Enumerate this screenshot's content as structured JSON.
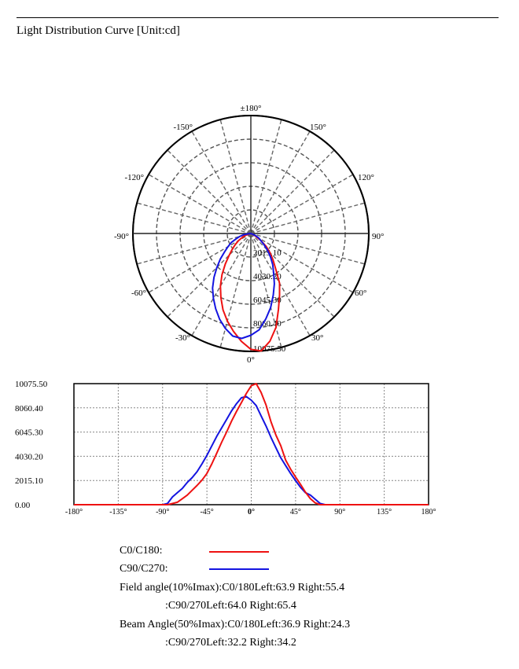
{
  "header": {
    "title": "Light Distribution Curve [Unit:cd]"
  },
  "chart_data": [
    {
      "type": "polar",
      "angle_labels": [
        {
          "angle": 180,
          "text": "±180°"
        },
        {
          "angle": 150,
          "text": "150°"
        },
        {
          "angle": -150,
          "text": "-150°"
        },
        {
          "angle": 120,
          "text": "120°"
        },
        {
          "angle": -120,
          "text": "-120°"
        },
        {
          "angle": 90,
          "text": "90°"
        },
        {
          "angle": -90,
          "text": "-90°"
        },
        {
          "angle": 60,
          "text": "60°"
        },
        {
          "angle": -60,
          "text": "-60°"
        },
        {
          "angle": 30,
          "text": "30°"
        },
        {
          "angle": -30,
          "text": "-30°"
        },
        {
          "angle": 0,
          "text": "0°"
        }
      ],
      "radial_labels": [
        "2015.10",
        "4030.20",
        "6045.30",
        "8060.40",
        "10075.50"
      ],
      "rmax": 10075.5,
      "series": [
        {
          "name": "C0/C180",
          "color": "#ee1111",
          "angles": [
            -90,
            -85,
            -80,
            -75,
            -70,
            -65,
            -60,
            -55,
            -50,
            -45,
            -40,
            -35,
            -30,
            -25,
            -20,
            -15,
            -10,
            -5,
            0,
            5,
            10,
            15,
            20,
            25,
            30,
            35,
            40,
            45,
            50,
            55,
            60,
            65,
            70,
            75,
            80,
            85,
            90
          ],
          "values": [
            0,
            0,
            100,
            200,
            500,
            800,
            1200,
            1600,
            2050,
            2600,
            3400,
            4300,
            5200,
            6050,
            6950,
            7750,
            8500,
            9250,
            9900,
            10075,
            9350,
            8300,
            6900,
            5800,
            4900,
            3700,
            2950,
            2300,
            1700,
            1050,
            500,
            150,
            0,
            0,
            0,
            0,
            0
          ]
        },
        {
          "name": "C90/C270",
          "color": "#1414e0",
          "angles": [
            -90,
            -85,
            -80,
            -75,
            -70,
            -65,
            -60,
            -55,
            -50,
            -45,
            -40,
            -35,
            -30,
            -25,
            -20,
            -15,
            -10,
            -5,
            0,
            5,
            10,
            15,
            20,
            25,
            30,
            35,
            40,
            45,
            50,
            55,
            60,
            65,
            70,
            75,
            80,
            85,
            90
          ],
          "values": [
            0,
            100,
            650,
            1000,
            1350,
            1850,
            2250,
            2750,
            3400,
            4100,
            4900,
            5700,
            6400,
            7100,
            7800,
            8400,
            8900,
            9000,
            8700,
            8250,
            7400,
            6550,
            5600,
            4750,
            3900,
            3250,
            2600,
            2000,
            1450,
            1000,
            800,
            450,
            100,
            0,
            0,
            0,
            0
          ]
        }
      ]
    },
    {
      "type": "line",
      "xlim": [
        -180,
        180
      ],
      "ylim": [
        0,
        10075.5
      ],
      "x_ticks": [
        -180,
        -135,
        -90,
        -45,
        0,
        45,
        90,
        135,
        180
      ],
      "x_tick_labels": [
        "-180°",
        "-135°",
        "-90°",
        "-45°",
        "0°",
        "45°",
        "90°",
        "135°",
        "180°"
      ],
      "y_tick_labels": [
        "10075.50",
        "8060.40",
        "6045.30",
        "4030.20",
        "2015.10",
        "0.00"
      ],
      "grid": true,
      "series": [
        {
          "name": "C0/C180",
          "color": "#ee1111",
          "x": [
            -180,
            -90,
            -85,
            -80,
            -75,
            -70,
            -65,
            -60,
            -55,
            -50,
            -45,
            -40,
            -35,
            -30,
            -25,
            -20,
            -15,
            -10,
            -5,
            0,
            5,
            10,
            15,
            20,
            25,
            30,
            35,
            40,
            45,
            50,
            55,
            60,
            65,
            70,
            75,
            80,
            85,
            90,
            180
          ],
          "y": [
            0,
            0,
            0,
            100,
            200,
            500,
            800,
            1200,
            1600,
            2050,
            2600,
            3400,
            4300,
            5200,
            6050,
            6950,
            7750,
            8500,
            9250,
            9900,
            10075,
            9350,
            8300,
            6900,
            5800,
            4900,
            3700,
            2950,
            2300,
            1700,
            1050,
            500,
            150,
            0,
            0,
            0,
            0,
            0,
            0
          ]
        },
        {
          "name": "C90/C270",
          "color": "#1414e0",
          "x": [
            -180,
            -90,
            -85,
            -80,
            -75,
            -70,
            -65,
            -60,
            -55,
            -50,
            -45,
            -40,
            -35,
            -30,
            -25,
            -20,
            -15,
            -10,
            -5,
            0,
            5,
            10,
            15,
            20,
            25,
            30,
            35,
            40,
            45,
            50,
            55,
            60,
            65,
            70,
            75,
            80,
            85,
            90,
            180
          ],
          "y": [
            0,
            0,
            100,
            650,
            1000,
            1350,
            1850,
            2250,
            2750,
            3400,
            4100,
            4900,
            5700,
            6400,
            7100,
            7800,
            8400,
            8900,
            9000,
            8700,
            8250,
            7400,
            6550,
            5600,
            4750,
            3900,
            3250,
            2600,
            2000,
            1450,
            1000,
            800,
            450,
            100,
            0,
            0,
            0,
            0,
            0
          ]
        }
      ]
    }
  ],
  "legend": [
    {
      "label": "C0/C180:",
      "color": "#ee1111"
    },
    {
      "label": "C90/C270:",
      "color": "#1414e0"
    }
  ],
  "stats": {
    "field_line1": "Field angle(10%Imax):C0/180Left:63.9 Right:55.4",
    "field_line2": ":C90/270Left:64.0 Right:65.4",
    "beam_line1": "Beam Angle(50%Imax):C0/180Left:36.9 Right:24.3",
    "beam_line2": ":C90/270Left:32.2 Right:34.2"
  }
}
